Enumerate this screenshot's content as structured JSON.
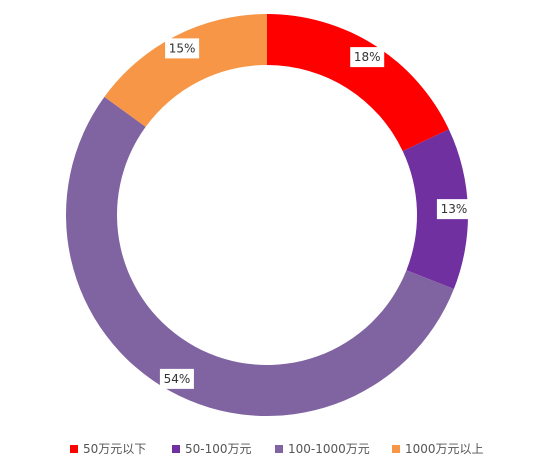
{
  "chart_data": {
    "type": "pie",
    "variant": "donut",
    "title": "",
    "categories": [
      "50万元以下",
      "50-100万元",
      "100-1000万元",
      "1000万元以上"
    ],
    "values": [
      18,
      13,
      54,
      15
    ],
    "data_labels": [
      "18%",
      "13%",
      "54%",
      "15%"
    ],
    "colors": [
      "#ff0000",
      "#7030a0",
      "#8064a2",
      "#f79646"
    ],
    "start_angle": "top",
    "direction": "clockwise",
    "legend": {
      "position": "bottom",
      "items": [
        "50万元以下",
        "50-100万元",
        "100-1000万元",
        "1000万元以上"
      ]
    }
  }
}
